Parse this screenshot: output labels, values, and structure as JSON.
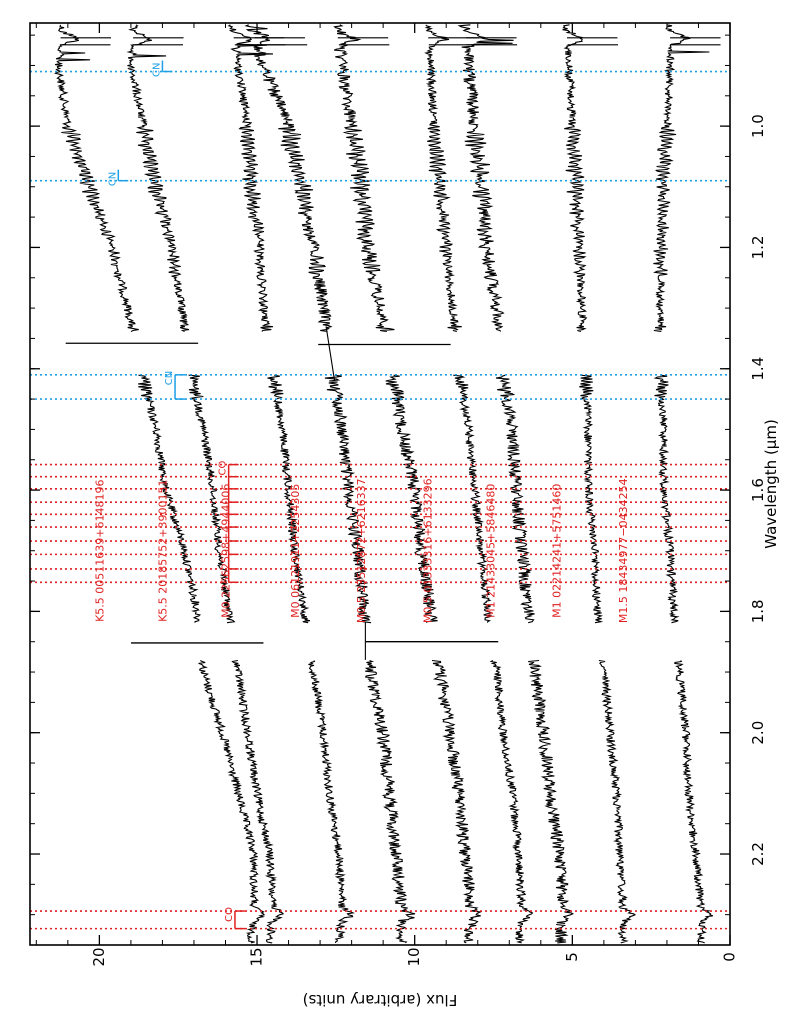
{
  "chart_data": {
    "type": "line",
    "orientation": "rotated",
    "xlabel": "Wavelength (μm)",
    "ylabel": "Flux (arbitrary units)",
    "xlim": [
      0.83,
      2.35
    ],
    "ylim": [
      0,
      22.2
    ],
    "x_ticks": [
      1.0,
      1.2,
      1.4,
      1.6,
      1.8,
      2.0,
      2.2
    ],
    "x_tick_labels": [
      "1.0",
      "1.2",
      "1.4",
      "1.6",
      "1.8",
      "2.0",
      "2.2"
    ],
    "y_ticks": [
      0,
      5,
      10,
      15,
      20
    ],
    "y_tick_labels": [
      "0",
      "5",
      "10",
      "15",
      "20"
    ],
    "gap_ranges": [
      [
        1.34,
        1.41
      ],
      [
        1.82,
        1.88
      ]
    ],
    "series": [
      {
        "name": "K5.5 00511639+6148196",
        "color": "#000000",
        "points": [
          [
            0.835,
            21.2
          ],
          [
            0.9,
            21.3
          ],
          [
            1.0,
            21.0
          ],
          [
            1.1,
            20.3
          ],
          [
            1.2,
            19.6
          ],
          [
            1.3,
            19.1
          ],
          [
            1.4,
            18.7
          ],
          [
            1.5,
            18.2
          ],
          [
            1.6,
            17.9
          ],
          [
            1.7,
            17.3
          ],
          [
            1.8,
            16.9
          ],
          [
            1.9,
            16.7
          ],
          [
            2.0,
            16.1
          ],
          [
            2.1,
            15.6
          ],
          [
            2.2,
            15.1
          ],
          [
            2.29,
            15.1
          ],
          [
            2.35,
            15.2
          ]
        ]
      },
      {
        "name": "K5.5 20185752+3900151",
        "color": "#000000",
        "points": [
          [
            0.835,
            18.9
          ],
          [
            0.9,
            19.0
          ],
          [
            1.0,
            18.6
          ],
          [
            1.1,
            18.2
          ],
          [
            1.2,
            17.7
          ],
          [
            1.3,
            17.4
          ],
          [
            1.4,
            17.1
          ],
          [
            1.5,
            16.7
          ],
          [
            1.6,
            16.4
          ],
          [
            1.7,
            16.2
          ],
          [
            1.8,
            15.9
          ],
          [
            1.9,
            15.6
          ],
          [
            2.0,
            15.3
          ],
          [
            2.1,
            15.0
          ],
          [
            2.2,
            14.6
          ],
          [
            2.29,
            14.5
          ],
          [
            2.35,
            14.6
          ]
        ]
      },
      {
        "name": "M0 22562598+4944006",
        "color": "#000000",
        "points": [
          [
            0.835,
            15.8
          ],
          [
            0.9,
            15.6
          ],
          [
            1.0,
            15.3
          ],
          [
            1.1,
            15.2
          ],
          [
            1.2,
            14.9
          ],
          [
            1.3,
            14.8
          ],
          [
            1.4,
            14.5
          ],
          [
            1.5,
            14.2
          ],
          [
            1.6,
            14.0
          ],
          [
            1.7,
            13.8
          ],
          [
            1.8,
            13.5
          ],
          [
            1.9,
            13.2
          ],
          [
            2.0,
            12.9
          ],
          [
            2.1,
            12.7
          ],
          [
            2.2,
            12.4
          ],
          [
            2.29,
            12.3
          ],
          [
            2.35,
            12.4
          ]
        ]
      },
      {
        "name": "M0 06121911+2254305",
        "color": "#000000",
        "points": [
          [
            0.835,
            15.2
          ],
          [
            0.9,
            14.8
          ],
          [
            1.0,
            14.0
          ],
          [
            1.1,
            13.6
          ],
          [
            1.2,
            13.2
          ],
          [
            1.3,
            12.9
          ],
          [
            1.4,
            12.6
          ],
          [
            1.5,
            12.3
          ],
          [
            1.6,
            12.1
          ],
          [
            1.7,
            11.8
          ],
          [
            1.8,
            11.6
          ],
          [
            1.9,
            11.4
          ],
          [
            2.0,
            11.0
          ],
          [
            2.1,
            10.8
          ],
          [
            2.2,
            10.6
          ],
          [
            2.29,
            10.4
          ],
          [
            2.35,
            10.4
          ]
        ]
      },
      {
        "name": "M0.5 23512872+6216337",
        "color": "#000000",
        "points": [
          [
            0.835,
            12.5
          ],
          [
            0.9,
            12.3
          ],
          [
            1.0,
            12.0
          ],
          [
            1.1,
            11.7
          ],
          [
            1.2,
            11.5
          ],
          [
            1.3,
            11.1
          ],
          [
            1.4,
            10.7
          ],
          [
            1.5,
            10.4
          ],
          [
            1.6,
            10.0
          ],
          [
            1.7,
            9.8
          ],
          [
            1.8,
            9.5
          ],
          [
            1.9,
            9.2
          ],
          [
            2.0,
            8.9
          ],
          [
            2.1,
            8.6
          ],
          [
            2.2,
            8.4
          ],
          [
            2.29,
            8.2
          ],
          [
            2.35,
            8.3
          ]
        ]
      },
      {
        "name": "M0.5 01333316+6133296",
        "color": "#000000",
        "points": [
          [
            0.835,
            9.6
          ],
          [
            0.9,
            9.5
          ],
          [
            1.0,
            9.4
          ],
          [
            1.1,
            9.2
          ],
          [
            1.2,
            9.0
          ],
          [
            1.3,
            8.8
          ],
          [
            1.4,
            8.6
          ],
          [
            1.5,
            8.3
          ],
          [
            1.6,
            8.1
          ],
          [
            1.7,
            7.9
          ],
          [
            1.8,
            7.7
          ],
          [
            1.9,
            7.4
          ],
          [
            2.0,
            7.2
          ],
          [
            2.1,
            6.9
          ],
          [
            2.2,
            6.7
          ],
          [
            2.29,
            6.6
          ],
          [
            2.35,
            6.7
          ]
        ]
      },
      {
        "name": "M1 21433045+5846480",
        "color": "#000000",
        "points": [
          [
            0.835,
            8.4
          ],
          [
            0.9,
            8.3
          ],
          [
            1.0,
            8.1
          ],
          [
            1.1,
            7.9
          ],
          [
            1.2,
            7.7
          ],
          [
            1.3,
            7.4
          ],
          [
            1.4,
            7.2
          ],
          [
            1.5,
            6.9
          ],
          [
            1.6,
            6.8
          ],
          [
            1.7,
            6.6
          ],
          [
            1.8,
            6.4
          ],
          [
            1.9,
            6.2
          ],
          [
            2.0,
            5.9
          ],
          [
            2.1,
            5.7
          ],
          [
            2.2,
            5.4
          ],
          [
            2.29,
            5.3
          ],
          [
            2.35,
            5.4
          ]
        ]
      },
      {
        "name": "M1 02214241+5751460",
        "color": "#000000",
        "points": [
          [
            0.835,
            5.2
          ],
          [
            0.9,
            5.1
          ],
          [
            1.0,
            5.0
          ],
          [
            1.1,
            4.9
          ],
          [
            1.2,
            4.8
          ],
          [
            1.3,
            4.7
          ],
          [
            1.4,
            4.6
          ],
          [
            1.5,
            4.5
          ],
          [
            1.6,
            4.5
          ],
          [
            1.7,
            4.3
          ],
          [
            1.8,
            4.2
          ],
          [
            1.9,
            4.0
          ],
          [
            2.0,
            3.8
          ],
          [
            2.1,
            3.6
          ],
          [
            2.2,
            3.5
          ],
          [
            2.29,
            3.4
          ],
          [
            2.35,
            3.4
          ]
        ]
      },
      {
        "name": "M1.5 18434977−0434254",
        "color": "#000000",
        "points": [
          [
            0.835,
            1.9
          ],
          [
            0.9,
            1.9
          ],
          [
            1.0,
            2.0
          ],
          [
            1.1,
            2.1
          ],
          [
            1.2,
            2.2
          ],
          [
            1.3,
            2.2
          ],
          [
            1.4,
            2.2
          ],
          [
            1.5,
            2.1
          ],
          [
            1.6,
            2.1
          ],
          [
            1.7,
            1.9
          ],
          [
            1.8,
            1.8
          ],
          [
            1.9,
            1.6
          ],
          [
            2.0,
            1.4
          ],
          [
            2.1,
            1.3
          ],
          [
            2.2,
            1.1
          ],
          [
            2.29,
            0.9
          ],
          [
            2.35,
            0.9
          ]
        ]
      }
    ],
    "star_labels": [
      {
        "text": "K5.5 00511639+6148196",
        "y": 20.0
      },
      {
        "text": "K5.5 20185752+3900151",
        "y": 18.0
      },
      {
        "text": "M0 22562598+4944006",
        "y": 16.0
      },
      {
        "text": "M0 06121911+2254305",
        "y": 13.8
      },
      {
        "text": "M0.5 23512872+6216337",
        "y": 11.7
      },
      {
        "text": "M0.5 01333316+6133296",
        "y": 9.6
      },
      {
        "text": "M1 21433045+5846480",
        "y": 7.6
      },
      {
        "text": "M1 02214241+5751460",
        "y": 5.5
      },
      {
        "text": "M1.5 18434977−0434254",
        "y": 3.4
      }
    ],
    "features": [
      {
        "label": "CN",
        "color": "#1ea0e6",
        "lines": [
          0.91
        ],
        "bracket_y": 18.0
      },
      {
        "label": "CN",
        "color": "#1ea0e6",
        "lines": [
          1.09
        ],
        "bracket_y": 19.4
      },
      {
        "label": "CN",
        "color": "#1ea0e6",
        "lines": [
          1.41,
          1.45
        ],
        "bracket_y": 17.6
      },
      {
        "label": "CO",
        "color": "#e02020",
        "lines": [
          1.558,
          1.578,
          1.598,
          1.62,
          1.64,
          1.661,
          1.684,
          1.706,
          1.73,
          1.752
        ],
        "bracket_y": 15.9
      },
      {
        "label": "CO",
        "color": "#e02020",
        "lines": [
          2.294,
          2.323
        ],
        "bracket_y": 15.7
      }
    ],
    "telluric_spikes": [
      {
        "x": 1.852,
        "series": 0
      },
      {
        "x": 1.358,
        "series": 0
      },
      {
        "x": 1.36,
        "series": 4
      },
      {
        "x": 1.85,
        "series": 4
      }
    ],
    "grid": false
  }
}
